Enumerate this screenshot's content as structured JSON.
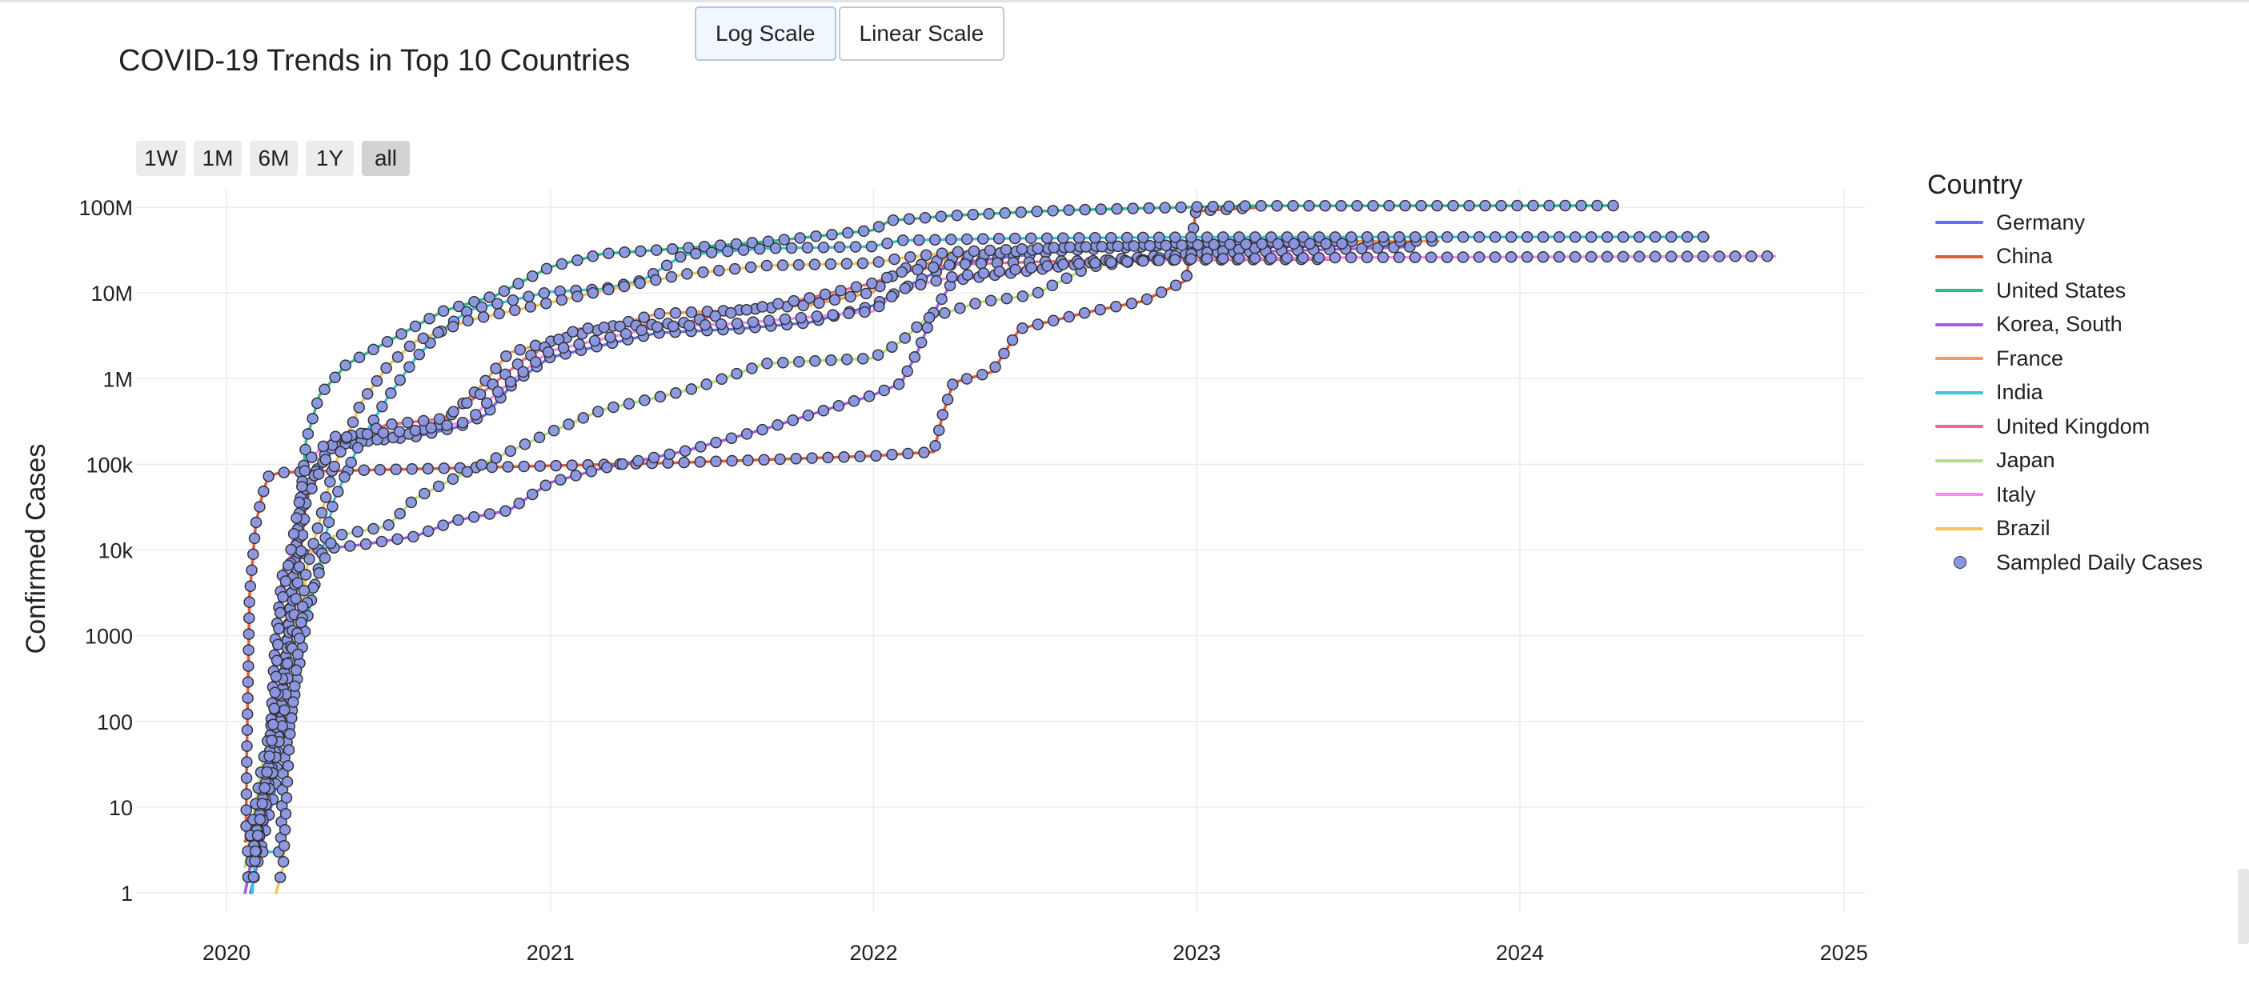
{
  "page": {
    "scale_buttons": [
      {
        "label": "Log Scale",
        "active": true
      },
      {
        "label": "Linear Scale",
        "active": false
      }
    ],
    "range_buttons": [
      {
        "label": "1W",
        "active": false
      },
      {
        "label": "1M",
        "active": false
      },
      {
        "label": "6M",
        "active": false
      },
      {
        "label": "1Y",
        "active": false
      },
      {
        "label": "all",
        "active": true
      }
    ]
  },
  "chart_data": {
    "type": "line",
    "title": "COVID-19 Trends in Top 10 Countries",
    "xlabel": "",
    "ylabel": "Confirmed Cases",
    "y_scale": "log",
    "ylim": [
      1,
      100000000
    ],
    "xlim": [
      "2020-01-01",
      "2025-01-01"
    ],
    "x_ticks": [
      "2020",
      "2021",
      "2022",
      "2023",
      "2024",
      "2025"
    ],
    "y_ticks": [
      {
        "value": 1,
        "label": "1"
      },
      {
        "value": 10,
        "label": "10"
      },
      {
        "value": 100,
        "label": "100"
      },
      {
        "value": 1000,
        "label": "1000"
      },
      {
        "value": 10000,
        "label": "10k"
      },
      {
        "value": 100000,
        "label": "100k"
      },
      {
        "value": 1000000,
        "label": "1M"
      },
      {
        "value": 10000000,
        "label": "10M"
      },
      {
        "value": 100000000,
        "label": "100M"
      }
    ],
    "grid": true,
    "legend_title": "Country",
    "legend_position": "right",
    "marker_series": {
      "name": "Sampled Daily Cases",
      "color": "#8a96e4",
      "edge_color": "#333333"
    },
    "series": [
      {
        "name": "Germany",
        "color": "#636efa",
        "points": [
          [
            "2020-01-28",
            1
          ],
          [
            "2020-02-25",
            16
          ],
          [
            "2020-03-10",
            1100
          ],
          [
            "2020-03-25",
            37000
          ],
          [
            "2020-04-25",
            155000
          ],
          [
            "2020-06-01",
            184000
          ],
          [
            "2020-08-01",
            210000
          ],
          [
            "2020-09-20",
            275000
          ],
          [
            "2020-10-20",
            380000
          ],
          [
            "2020-11-20",
            880000
          ],
          [
            "2020-12-31",
            1760000
          ],
          [
            "2021-03-01",
            2450000
          ],
          [
            "2021-05-01",
            3400000
          ],
          [
            "2021-08-01",
            3800000
          ],
          [
            "2021-10-20",
            4500000
          ],
          [
            "2021-12-31",
            7100000
          ],
          [
            "2022-02-15",
            13000000
          ],
          [
            "2022-04-01",
            22000000
          ],
          [
            "2022-08-01",
            31000000
          ],
          [
            "2022-12-31",
            37300000
          ],
          [
            "2023-05-01",
            38400000
          ]
        ]
      },
      {
        "name": "China",
        "color": "#e05a3c",
        "points": [
          [
            "2020-01-22",
            4
          ],
          [
            "2020-01-23",
            4
          ],
          [
            "2020-01-24",
            45
          ],
          [
            "2020-01-27",
            2900
          ],
          [
            "2020-02-03",
            20000
          ],
          [
            "2020-02-10",
            42000
          ],
          [
            "2020-02-17",
            72000
          ],
          [
            "2020-03-01",
            80000
          ],
          [
            "2020-04-15",
            83000
          ],
          [
            "2020-12-31",
            96000
          ],
          [
            "2021-06-01",
            105000
          ],
          [
            "2021-12-31",
            125000
          ],
          [
            "2022-03-10",
            140000
          ],
          [
            "2022-03-20",
            380000
          ],
          [
            "2022-04-01",
            900000
          ],
          [
            "2022-05-15",
            1200000
          ],
          [
            "2022-06-15",
            3800000
          ],
          [
            "2022-09-01",
            6000000
          ],
          [
            "2022-11-01",
            8000000
          ],
          [
            "2022-12-20",
            14000000
          ],
          [
            "2022-12-31",
            90000000
          ],
          [
            "2023-03-09",
            99000000
          ]
        ]
      },
      {
        "name": "United States",
        "color": "#2bbd8e",
        "points": [
          [
            "2020-01-22",
            1
          ],
          [
            "2020-02-29",
            70
          ],
          [
            "2020-03-15",
            3600
          ],
          [
            "2020-03-31",
            190000
          ],
          [
            "2020-04-15",
            640000
          ],
          [
            "2020-05-15",
            1450000
          ],
          [
            "2020-07-01",
            2700000
          ],
          [
            "2020-09-01",
            6100000
          ],
          [
            "2020-11-01",
            9400000
          ],
          [
            "2020-12-31",
            20000000
          ],
          [
            "2021-03-01",
            28600000
          ],
          [
            "2021-06-01",
            33300000
          ],
          [
            "2021-09-01",
            39600000
          ],
          [
            "2021-12-31",
            54000000
          ],
          [
            "2022-01-20",
            70000000
          ],
          [
            "2022-04-01",
            80000000
          ],
          [
            "2022-08-01",
            92000000
          ],
          [
            "2022-12-31",
            100700000
          ],
          [
            "2023-03-09",
            103800000
          ],
          [
            "2024-04-20",
            104500000
          ]
        ]
      },
      {
        "name": "Korea, South",
        "color": "#a55cf0",
        "points": [
          [
            "2020-01-22",
            1
          ],
          [
            "2020-02-18",
            31
          ],
          [
            "2020-02-25",
            900
          ],
          [
            "2020-03-05",
            6000
          ],
          [
            "2020-03-31",
            9800
          ],
          [
            "2020-06-01",
            11500
          ],
          [
            "2020-08-01",
            14400
          ],
          [
            "2020-09-15",
            22000
          ],
          [
            "2020-11-15",
            29000
          ],
          [
            "2020-12-31",
            61000
          ],
          [
            "2021-03-01",
            90000
          ],
          [
            "2021-06-01",
            142000
          ],
          [
            "2021-09-01",
            260000
          ],
          [
            "2021-12-31",
            640000
          ],
          [
            "2022-02-01",
            880000
          ],
          [
            "2022-02-20",
            2100000
          ],
          [
            "2022-03-10",
            6000000
          ],
          [
            "2022-04-01",
            14000000
          ],
          [
            "2022-07-01",
            18400000
          ],
          [
            "2022-10-01",
            24900000
          ],
          [
            "2022-12-31",
            29000000
          ],
          [
            "2023-06-01",
            32000000
          ],
          [
            "2023-08-31",
            34500000
          ]
        ]
      },
      {
        "name": "France",
        "color": "#f49b5c",
        "points": [
          [
            "2020-01-24",
            3
          ],
          [
            "2020-03-01",
            130
          ],
          [
            "2020-03-31",
            52000
          ],
          [
            "2020-05-01",
            167000
          ],
          [
            "2020-07-15",
            210000
          ],
          [
            "2020-09-01",
            300000
          ],
          [
            "2020-10-15",
            830000
          ],
          [
            "2020-11-15",
            2000000
          ],
          [
            "2020-12-31",
            2700000
          ],
          [
            "2021-03-01",
            3800000
          ],
          [
            "2021-05-01",
            5700000
          ],
          [
            "2021-08-01",
            6300000
          ],
          [
            "2021-10-20",
            7200000
          ],
          [
            "2021-12-31",
            10200000
          ],
          [
            "2022-02-01",
            19000000
          ],
          [
            "2022-04-01",
            26000000
          ],
          [
            "2022-08-01",
            34000000
          ],
          [
            "2022-12-31",
            39000000
          ],
          [
            "2023-06-01",
            40000000
          ],
          [
            "2023-10-01",
            40200000
          ]
        ]
      },
      {
        "name": "India",
        "color": "#3bc4e0",
        "points": [
          [
            "2020-01-30",
            1
          ],
          [
            "2020-02-03",
            3
          ],
          [
            "2020-03-02",
            3
          ],
          [
            "2020-03-05",
            30
          ],
          [
            "2020-03-31",
            1400
          ],
          [
            "2020-05-01",
            37000
          ],
          [
            "2020-06-01",
            190000
          ],
          [
            "2020-07-01",
            600000
          ],
          [
            "2020-08-01",
            1700000
          ],
          [
            "2020-09-01",
            3700000
          ],
          [
            "2020-10-01",
            6300000
          ],
          [
            "2020-12-31",
            10300000
          ],
          [
            "2021-03-01",
            11100000
          ],
          [
            "2021-04-15",
            14000000
          ],
          [
            "2021-06-01",
            28000000
          ],
          [
            "2021-09-01",
            33000000
          ],
          [
            "2021-12-31",
            34800000
          ],
          [
            "2022-02-01",
            41000000
          ],
          [
            "2022-06-01",
            43200000
          ],
          [
            "2022-12-31",
            44700000
          ],
          [
            "2024-06-01",
            45000000
          ],
          [
            "2024-08-01",
            45000000
          ]
        ]
      },
      {
        "name": "United Kingdom",
        "color": "#e86a8c",
        "points": [
          [
            "2020-01-31",
            2
          ],
          [
            "2020-03-05",
            100
          ],
          [
            "2020-03-31",
            38000
          ],
          [
            "2020-05-01",
            180000
          ],
          [
            "2020-07-01",
            290000
          ],
          [
            "2020-09-01",
            340000
          ],
          [
            "2020-10-15",
            670000
          ],
          [
            "2020-12-01",
            1650000
          ],
          [
            "2020-12-31",
            2500000
          ],
          [
            "2021-02-01",
            3800000
          ],
          [
            "2021-06-01",
            4500000
          ],
          [
            "2021-08-01",
            6100000
          ],
          [
            "2021-10-20",
            8700000
          ],
          [
            "2021-12-31",
            13000000
          ],
          [
            "2022-02-01",
            17500000
          ],
          [
            "2022-04-01",
            21500000
          ],
          [
            "2022-08-01",
            23500000
          ],
          [
            "2022-12-31",
            24300000
          ],
          [
            "2023-04-01",
            24500000
          ],
          [
            "2023-06-01",
            24600000
          ]
        ]
      },
      {
        "name": "Japan",
        "color": "#b6e07d",
        "points": [
          [
            "2020-01-22",
            2
          ],
          [
            "2020-02-10",
            30
          ],
          [
            "2020-03-01",
            250
          ],
          [
            "2020-04-01",
            2400
          ],
          [
            "2020-05-01",
            14500
          ],
          [
            "2020-07-01",
            19000
          ],
          [
            "2020-08-01",
            40000
          ],
          [
            "2020-10-01",
            84000
          ],
          [
            "2020-12-31",
            235000
          ],
          [
            "2021-03-01",
            435000
          ],
          [
            "2021-05-01",
            600000
          ],
          [
            "2021-06-15",
            780000
          ],
          [
            "2021-09-01",
            1500000
          ],
          [
            "2021-12-31",
            1730000
          ],
          [
            "2022-02-01",
            2700000
          ],
          [
            "2022-03-01",
            5000000
          ],
          [
            "2022-05-01",
            7800000
          ],
          [
            "2022-07-01",
            9500000
          ],
          [
            "2022-09-01",
            20000000
          ],
          [
            "2022-12-31",
            29000000
          ],
          [
            "2023-03-09",
            33300000
          ]
        ]
      },
      {
        "name": "Italy",
        "color": "#f48df0",
        "points": [
          [
            "2020-01-31",
            2
          ],
          [
            "2020-02-22",
            70
          ],
          [
            "2020-03-01",
            1700
          ],
          [
            "2020-03-31",
            105000
          ],
          [
            "2020-05-01",
            210000
          ],
          [
            "2020-08-01",
            248000
          ],
          [
            "2020-10-01",
            315000
          ],
          [
            "2020-11-01",
            680000
          ],
          [
            "2020-12-31",
            2100000
          ],
          [
            "2021-03-01",
            2900000
          ],
          [
            "2021-05-01",
            4000000
          ],
          [
            "2021-08-01",
            4400000
          ],
          [
            "2021-12-31",
            6100000
          ],
          [
            "2022-02-01",
            11000000
          ],
          [
            "2022-04-01",
            15500000
          ],
          [
            "2022-08-01",
            21500000
          ],
          [
            "2022-12-31",
            25000000
          ],
          [
            "2023-06-01",
            25800000
          ],
          [
            "2024-10-15",
            26800000
          ]
        ]
      },
      {
        "name": "Brazil",
        "color": "#f6c556",
        "points": [
          [
            "2020-02-26",
            1
          ],
          [
            "2020-03-05",
            2
          ],
          [
            "2020-03-12",
            60
          ],
          [
            "2020-03-31",
            5700
          ],
          [
            "2020-05-01",
            90000
          ],
          [
            "2020-06-01",
            520000
          ],
          [
            "2020-07-01",
            1400000
          ],
          [
            "2020-08-01",
            2700000
          ],
          [
            "2020-10-01",
            4800000
          ],
          [
            "2020-12-31",
            7700000
          ],
          [
            "2021-03-01",
            10600000
          ],
          [
            "2021-06-01",
            16500000
          ],
          [
            "2021-09-01",
            20800000
          ],
          [
            "2021-12-31",
            22300000
          ],
          [
            "2022-02-01",
            25500000
          ],
          [
            "2022-04-01",
            30000000
          ],
          [
            "2022-08-01",
            34000000
          ],
          [
            "2022-12-31",
            36300000
          ],
          [
            "2023-03-09",
            37200000
          ],
          [
            "2023-07-01",
            37600000
          ]
        ]
      }
    ]
  }
}
